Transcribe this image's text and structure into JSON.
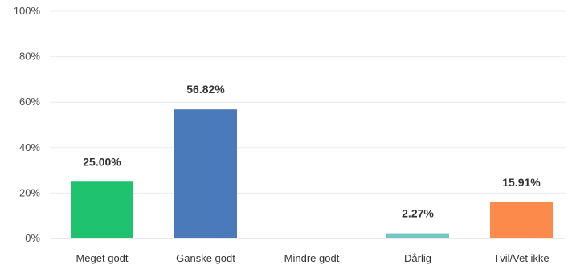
{
  "chart_data": {
    "type": "bar",
    "title": "",
    "xlabel": "",
    "ylabel": "",
    "ylim": [
      0,
      100
    ],
    "y_ticks": [
      0,
      20,
      40,
      60,
      80,
      100
    ],
    "y_tick_labels": [
      "0%",
      "20%",
      "40%",
      "60%",
      "80%",
      "100%"
    ],
    "grid": true,
    "categories": [
      "Meget godt",
      "Ganske godt",
      "Mindre godt",
      "Dårlig",
      "Tvil/Vet ikke"
    ],
    "values": [
      25.0,
      56.82,
      0,
      2.27,
      15.91
    ],
    "data_labels": [
      "25.00%",
      "56.82%",
      "",
      "2.27%",
      "15.91%"
    ],
    "colors": [
      "#1fc26f",
      "#4a7ab9",
      "#999999",
      "#72c7c2",
      "#fb8a4b"
    ]
  }
}
